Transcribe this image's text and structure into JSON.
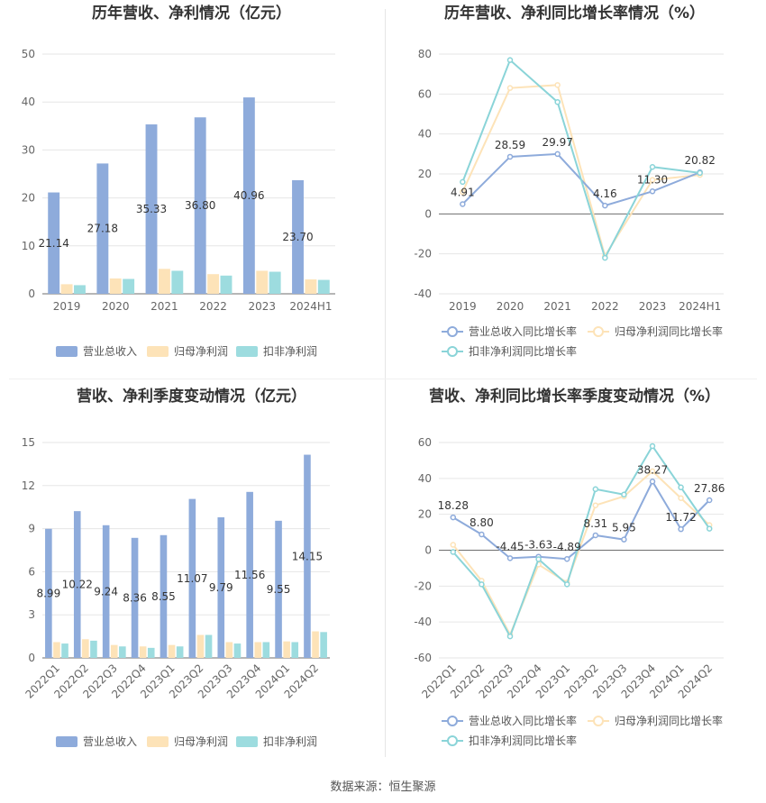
{
  "source_text": "数据来源：恒生聚源",
  "colors": {
    "revenue": "#8eabdb",
    "parent_profit": "#fde3b8",
    "deducted_profit": "#9ddcdf",
    "revenue_line": "#8eabdb",
    "parent_line": "#fde3b8",
    "deducted_line": "#8ad4d8"
  },
  "chart_data": [
    {
      "id": "annual-bar",
      "type": "bar",
      "title": "历年营收、净利情况（亿元）",
      "categories": [
        "2019",
        "2020",
        "2021",
        "2022",
        "2023",
        "2024H1"
      ],
      "ylim": [
        0,
        50
      ],
      "yticks": [
        0,
        10,
        20,
        30,
        40,
        50
      ],
      "series": [
        {
          "name": "营业总收入",
          "values": [
            21.14,
            27.18,
            35.33,
            36.8,
            40.96,
            23.7
          ],
          "labels": [
            "21.14",
            "27.18",
            "35.33",
            "36.80",
            "40.96",
            "23.70"
          ]
        },
        {
          "name": "归母净利润",
          "values": [
            2.0,
            3.2,
            5.2,
            4.1,
            4.8,
            3.0
          ]
        },
        {
          "name": "扣非净利润",
          "values": [
            1.8,
            3.1,
            4.8,
            3.8,
            4.6,
            2.9
          ]
        }
      ],
      "grid": true,
      "legend": "bottom"
    },
    {
      "id": "annual-line",
      "type": "line",
      "title": "历年营收、净利同比增长率情况（%）",
      "categories": [
        "2019",
        "2020",
        "2021",
        "2022",
        "2023",
        "2024H1"
      ],
      "ylim": [
        -40,
        80
      ],
      "yticks": [
        -40,
        -20,
        0,
        20,
        40,
        60,
        80
      ],
      "series": [
        {
          "name": "营业总收入同比增长率",
          "values": [
            4.91,
            28.59,
            29.97,
            4.16,
            11.3,
            20.82
          ],
          "labels": [
            "4.91",
            "28.59",
            "29.97",
            "4.16",
            "11.30",
            "20.82"
          ]
        },
        {
          "name": "归母净利润同比增长率",
          "values": [
            11,
            63,
            64.5,
            -21,
            17,
            19.5
          ]
        },
        {
          "name": "扣非净利润同比增长率",
          "values": [
            16,
            77,
            56,
            -22,
            23.5,
            20.5
          ]
        }
      ],
      "grid": true,
      "legend": "bottom"
    },
    {
      "id": "quarter-bar",
      "type": "bar",
      "title": "营收、净利季度变动情况（亿元）",
      "categories": [
        "2022Q1",
        "2022Q2",
        "2022Q3",
        "2022Q4",
        "2023Q1",
        "2023Q2",
        "2023Q3",
        "2023Q4",
        "2024Q1",
        "2024Q2"
      ],
      "ylim": [
        0,
        15
      ],
      "yticks": [
        0,
        3,
        6,
        9,
        12,
        15
      ],
      "series": [
        {
          "name": "营业总收入",
          "values": [
            8.99,
            10.22,
            9.24,
            8.36,
            8.55,
            11.07,
            9.79,
            11.56,
            9.55,
            14.15
          ],
          "labels": [
            "8.99",
            "10.22",
            "9.24",
            "8.36",
            "8.55",
            "11.07",
            "9.79",
            "11.56",
            "9.55",
            "14.15"
          ]
        },
        {
          "name": "归母净利润",
          "values": [
            1.1,
            1.3,
            0.9,
            0.8,
            0.9,
            1.6,
            1.1,
            1.1,
            1.15,
            1.85
          ]
        },
        {
          "name": "扣非净利润",
          "values": [
            1.0,
            1.2,
            0.8,
            0.7,
            0.8,
            1.6,
            1.0,
            1.1,
            1.1,
            1.8
          ]
        }
      ],
      "grid": true,
      "legend": "bottom"
    },
    {
      "id": "quarter-line",
      "type": "line",
      "title": "营收、净利同比增长率季度变动情况（%）",
      "categories": [
        "2022Q1",
        "2022Q2",
        "2022Q3",
        "2022Q4",
        "2023Q1",
        "2023Q2",
        "2023Q3",
        "2023Q4",
        "2024Q1",
        "2024Q2"
      ],
      "ylim": [
        -60,
        60
      ],
      "yticks": [
        -60,
        -40,
        -20,
        0,
        20,
        40,
        60
      ],
      "series": [
        {
          "name": "营业总收入同比增长率",
          "values": [
            18.28,
            8.8,
            -4.45,
            -3.63,
            -4.89,
            8.31,
            5.95,
            38.27,
            11.72,
            27.86
          ],
          "labels": [
            "18.28",
            "8.80",
            "-4.45",
            "-3.63",
            "-4.89",
            "8.31",
            "5.95",
            "38.27",
            "11.72",
            "27.86"
          ]
        },
        {
          "name": "归母净利润同比增长率",
          "values": [
            3,
            -17,
            -47,
            -8,
            -18,
            25,
            30,
            44,
            29,
            14
          ]
        },
        {
          "name": "扣非净利润同比增长率",
          "values": [
            -1,
            -19,
            -48,
            -5,
            -19,
            34,
            31,
            58,
            35,
            12
          ]
        }
      ],
      "grid": true,
      "legend": "bottom"
    }
  ]
}
